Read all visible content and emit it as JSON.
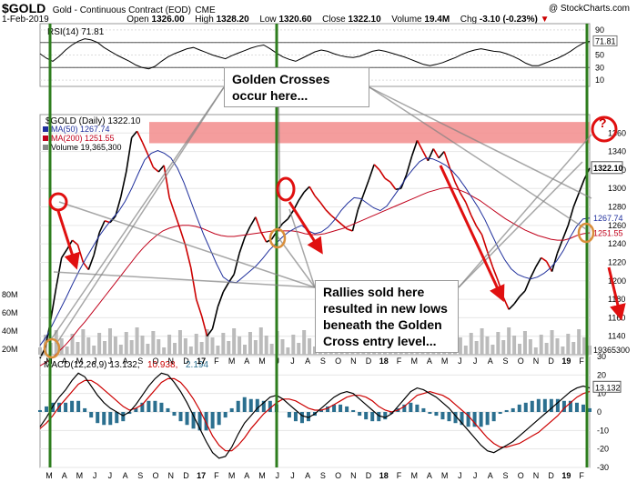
{
  "header": {
    "symbol": "$GOLD",
    "name": "Gold - Continuous Contract (EOD)",
    "exchange": "CME",
    "watermark": "@ StockCharts.com",
    "date": "1-Feb-2019",
    "open_label": "Open",
    "open": "1326.00",
    "high_label": "High",
    "high": "1328.20",
    "low_label": "Low",
    "low": "1320.60",
    "close_label": "Close",
    "close": "1322.10",
    "volume_label": "Volume",
    "volume": "19.4M",
    "chg_label": "Chg",
    "chg": "-3.10 (-0.23%)"
  },
  "annotations": {
    "golden_crosses": [
      "Golden Crosses",
      "occur here..."
    ],
    "rallies_sold": [
      "Rallies sold here",
      "resulted in new lows",
      "beneath the Golden",
      "Cross entry level..."
    ],
    "question_mark": "?"
  },
  "colors": {
    "price_up": "#000000",
    "price_down": "#cc0000",
    "ma50": "#1f2f9c",
    "ma200": "#c0001a",
    "rsi_line": "#000000",
    "macd_line": "#000000",
    "signal_line": "#cc0000",
    "histogram": "#2b6f8f",
    "resistance_band": "#f28c8c",
    "green_vline": "#2e7d1e",
    "orange_circle": "#d98e3a",
    "red_circle": "#e01010",
    "arrow": "#e01010",
    "volume_bar": "#bbbbbb"
  },
  "chart_data": [
    {
      "type": "line",
      "panel": "rsi",
      "title": "RSI(14) 71.81",
      "value": 71.81,
      "ylim": [
        0,
        100
      ],
      "y_ticks": [
        90,
        70,
        50,
        30,
        10
      ],
      "reference_lines": [
        70,
        30
      ],
      "x_ticks": [
        "M",
        "A",
        "M",
        "J",
        "J",
        "A",
        "S",
        "O",
        "N",
        "D",
        "17",
        "F",
        "M",
        "A",
        "M",
        "J",
        "J",
        "A",
        "S",
        "O",
        "N",
        "D",
        "18",
        "F",
        "M",
        "A",
        "M",
        "J",
        "J",
        "A",
        "S",
        "O",
        "N",
        "D",
        "19",
        "F"
      ],
      "series": [
        {
          "name": "RSI(14)",
          "values": [
            52,
            45,
            40,
            48,
            58,
            66,
            72,
            76,
            74,
            70,
            62,
            56,
            50,
            45,
            40,
            34,
            30,
            28,
            32,
            40,
            47,
            52,
            56,
            60,
            62,
            58,
            54,
            50,
            47,
            44,
            49,
            53,
            57,
            61,
            64,
            66,
            60,
            53,
            47,
            43,
            40,
            45,
            50,
            55,
            58,
            56,
            52,
            49,
            47,
            46,
            48,
            52,
            56,
            58,
            56,
            53,
            50,
            47,
            43,
            39,
            35,
            33,
            35,
            38,
            42,
            46,
            51,
            55,
            58,
            60,
            58,
            56,
            55,
            52,
            48,
            43,
            37,
            33,
            33,
            37,
            41,
            45,
            50,
            56,
            63,
            69,
            72
          ]
        }
      ]
    },
    {
      "type": "line",
      "panel": "price",
      "title": "$GOLD (Daily) 1322.10",
      "ylim": [
        1120,
        1380
      ],
      "y_ticks": [
        1360,
        1340,
        1320,
        1300,
        1280,
        1260,
        1240,
        1220,
        1200,
        1180,
        1160,
        1140
      ],
      "last_price": 1322.1,
      "volume_text": "Volume 19,365,300",
      "volume_ticks": [
        "80M",
        "60M",
        "40M",
        "20M"
      ],
      "volume_last": "19365300",
      "x_ticks": [
        "M",
        "A",
        "M",
        "J",
        "J",
        "A",
        "S",
        "O",
        "N",
        "D",
        "17",
        "F",
        "M",
        "A",
        "M",
        "J",
        "J",
        "A",
        "S",
        "O",
        "N",
        "D",
        "18",
        "F",
        "M",
        "A",
        "M",
        "J",
        "J",
        "A",
        "S",
        "O",
        "N",
        "D",
        "19",
        "F"
      ],
      "series": [
        {
          "name": "MA(50) 1267.74",
          "last_value": 1267.74,
          "values": [
            1130,
            1140,
            1154,
            1168,
            1182,
            1197,
            1211,
            1224,
            1236,
            1248,
            1258,
            1267,
            1275,
            1286,
            1300,
            1316,
            1331,
            1338,
            1341,
            1338,
            1333,
            1322,
            1306,
            1287,
            1268,
            1250,
            1234,
            1218,
            1204,
            1199,
            1198,
            1204,
            1210,
            1216,
            1224,
            1233,
            1240,
            1247,
            1253,
            1257,
            1260,
            1254,
            1251,
            1253,
            1258,
            1266,
            1276,
            1284,
            1290,
            1289,
            1284,
            1279,
            1276,
            1281,
            1291,
            1301,
            1312,
            1321,
            1329,
            1333,
            1332,
            1329,
            1325,
            1319,
            1311,
            1301,
            1290,
            1279,
            1266,
            1251,
            1236,
            1223,
            1213,
            1207,
            1204,
            1202,
            1204,
            1208,
            1214,
            1222,
            1233,
            1247,
            1259,
            1267,
            1268
          ]
        },
        {
          "name": "MA(200) 1251.55",
          "last_value": 1251.55,
          "values": [
            1108,
            1112,
            1117,
            1124,
            1131,
            1139,
            1148,
            1156,
            1165,
            1174,
            1183,
            1192,
            1201,
            1210,
            1219,
            1228,
            1236,
            1243,
            1249,
            1254,
            1257,
            1259,
            1260,
            1260,
            1259,
            1257,
            1254,
            1251,
            1249,
            1248,
            1248,
            1249,
            1250,
            1251,
            1252,
            1253,
            1254,
            1254,
            1254,
            1254,
            1253,
            1251,
            1250,
            1250,
            1251,
            1253,
            1255,
            1257,
            1260,
            1263,
            1266,
            1269,
            1272,
            1275,
            1278,
            1281,
            1284,
            1287,
            1290,
            1293,
            1296,
            1298,
            1300,
            1301,
            1300,
            1298,
            1295,
            1291,
            1287,
            1282,
            1277,
            1272,
            1267,
            1263,
            1259,
            1255,
            1252,
            1249,
            1247,
            1245,
            1244,
            1244,
            1246,
            1249,
            1251,
            1252
          ]
        },
        {
          "name": "Price",
          "values": [
            1116,
            1128,
            1158,
            1193,
            1225,
            1234,
            1244,
            1239,
            1220,
            1212,
            1228,
            1252,
            1265,
            1263,
            1270,
            1291,
            1318,
            1355,
            1362,
            1350,
            1337,
            1323,
            1318,
            1325,
            1290,
            1273,
            1256,
            1238,
            1214,
            1180,
            1162,
            1140,
            1148,
            1172,
            1188,
            1198,
            1207,
            1230,
            1247,
            1259,
            1269,
            1253,
            1242,
            1245,
            1254,
            1262,
            1267,
            1276,
            1287,
            1296,
            1302,
            1292,
            1285,
            1277,
            1271,
            1266,
            1261,
            1256,
            1254,
            1277,
            1293,
            1309,
            1326,
            1320,
            1311,
            1307,
            1299,
            1300,
            1315,
            1335,
            1352,
            1341,
            1330,
            1343,
            1333,
            1340,
            1323,
            1307,
            1295,
            1285,
            1271,
            1259,
            1250,
            1232,
            1215,
            1200,
            1182,
            1169,
            1175,
            1183,
            1189,
            1203,
            1215,
            1225,
            1221,
            1210,
            1230,
            1245,
            1260,
            1280,
            1295,
            1310,
            1322
          ]
        }
      ]
    },
    {
      "type": "line",
      "panel": "macd",
      "title": "MACD(12,26,9) 13.132, 10.938, 2.194",
      "macd": 13.132,
      "signal": 10.938,
      "hist": 2.194,
      "ylim": [
        -30,
        30
      ],
      "y_ticks": [
        30,
        20,
        10,
        0,
        -10,
        -20,
        -30
      ],
      "x_ticks": [
        "M",
        "A",
        "M",
        "J",
        "J",
        "A",
        "S",
        "O",
        "N",
        "D",
        "17",
        "F",
        "M",
        "A",
        "M",
        "J",
        "J",
        "A",
        "S",
        "O",
        "N",
        "D",
        "18",
        "F",
        "M",
        "A",
        "M",
        "J",
        "J",
        "A",
        "S",
        "O",
        "N",
        "D",
        "19",
        "F"
      ],
      "series": [
        {
          "name": "MACD",
          "values": [
            -8,
            -3,
            3,
            8,
            12,
            17,
            21,
            19,
            14,
            9,
            5,
            2,
            0,
            -2,
            0,
            4,
            9,
            14,
            18,
            21,
            20,
            16,
            11,
            5,
            -2,
            -9,
            -16,
            -22,
            -25,
            -24,
            -19,
            -12,
            -6,
            -2,
            2,
            5,
            8,
            9,
            7,
            4,
            1,
            -2,
            -3,
            -1,
            2,
            5,
            8,
            10,
            11,
            10,
            7,
            4,
            1,
            -2,
            -3,
            -1,
            3,
            7,
            11,
            13,
            12,
            10,
            8,
            5,
            2,
            -2,
            -6,
            -10,
            -14,
            -18,
            -21,
            -22,
            -20,
            -18,
            -16,
            -13,
            -10,
            -7,
            -4,
            -1,
            2,
            5,
            8,
            11,
            13,
            14,
            13
          ]
        },
        {
          "name": "Signal",
          "values": [
            -9,
            -6,
            -2,
            3,
            7,
            11,
            15,
            17,
            17,
            15,
            12,
            9,
            6,
            3,
            1,
            2,
            4,
            8,
            12,
            16,
            18,
            18,
            16,
            12,
            7,
            1,
            -6,
            -13,
            -18,
            -21,
            -21,
            -18,
            -14,
            -9,
            -5,
            -1,
            2,
            5,
            7,
            7,
            6,
            4,
            2,
            1,
            1,
            2,
            4,
            6,
            8,
            9,
            9,
            8,
            6,
            3,
            1,
            0,
            1,
            3,
            6,
            9,
            10,
            11,
            10,
            9,
            7,
            4,
            1,
            -2,
            -6,
            -10,
            -14,
            -17,
            -19,
            -19,
            -18,
            -17,
            -15,
            -13,
            -11,
            -8,
            -5,
            -2,
            2,
            5,
            8,
            10,
            11
          ]
        }
      ]
    }
  ]
}
